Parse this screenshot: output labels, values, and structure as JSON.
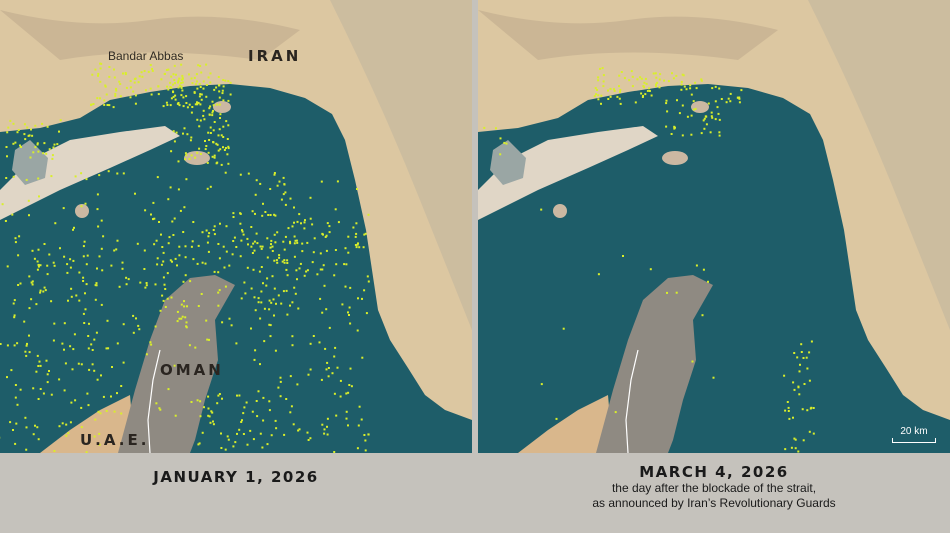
{
  "colors": {
    "sea": "#1e5d69",
    "land": "#dcc7a1",
    "mountain": "#8f8a82",
    "ships": "#d9ef2a",
    "caption_bg": "#c5c2bc"
  },
  "panels": [
    {
      "date": "JANUARY 1, 2026",
      "subtitle": [],
      "labels": {
        "city": "Bandar Abbas",
        "iran": "IRAN",
        "oman": "OMAN",
        "uae": "U.A.E."
      },
      "ship_density": "high"
    },
    {
      "date": "MARCH 4, 2026",
      "subtitle": [
        "the day after the blockade of the strait,",
        "as announced by Iran’s Revolutionary Guards"
      ],
      "scale": "20 km",
      "ship_density": "low"
    }
  ]
}
